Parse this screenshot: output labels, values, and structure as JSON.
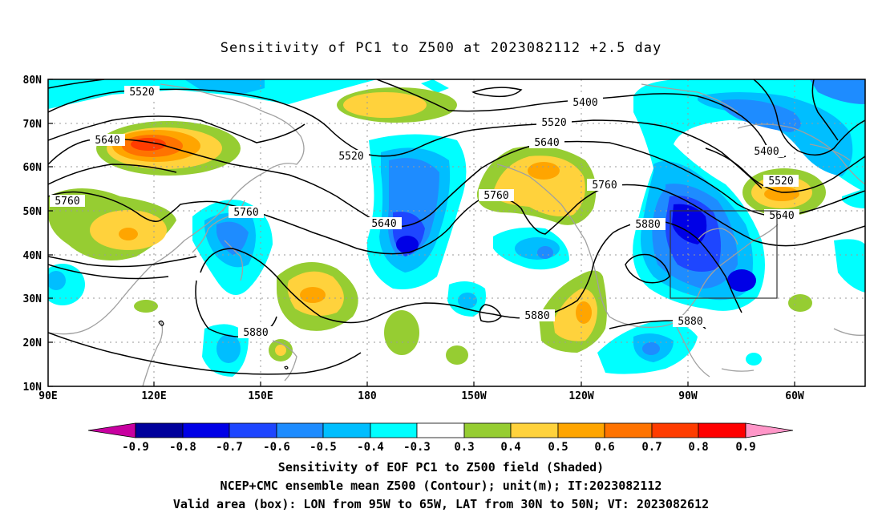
{
  "title": "Sensitivity of PC1 to Z500 at 2023082112 +2.5 day",
  "axes": {
    "y_ticks": [
      "80N",
      "70N",
      "60N",
      "50N",
      "40N",
      "30N",
      "20N",
      "10N"
    ],
    "x_ticks": [
      "90E",
      "120E",
      "150E",
      "180",
      "150W",
      "120W",
      "90W",
      "60W"
    ]
  },
  "contour_levels": [
    {
      "label": "5400",
      "value": 5400
    },
    {
      "label": "5520",
      "value": 5520
    },
    {
      "label": "5640",
      "value": 5640
    },
    {
      "label": "5760",
      "value": 5760
    },
    {
      "label": "5880",
      "value": 5880
    }
  ],
  "contour_labels": [
    {
      "text": "5520"
    },
    {
      "text": "5640"
    },
    {
      "text": "5760"
    },
    {
      "text": "5520"
    },
    {
      "text": "5760"
    },
    {
      "text": "5880"
    },
    {
      "text": "5640"
    },
    {
      "text": "5520"
    },
    {
      "text": "5640"
    },
    {
      "text": "5760"
    },
    {
      "text": "5400"
    },
    {
      "text": "5760"
    },
    {
      "text": "5880"
    },
    {
      "text": "5880"
    },
    {
      "text": "5880"
    },
    {
      "text": "5400"
    },
    {
      "text": "5520"
    },
    {
      "text": "5640"
    }
  ],
  "colorbar": {
    "labels": [
      "-0.9",
      "-0.8",
      "-0.7",
      "-0.6",
      "-0.5",
      "-0.4",
      "-0.3",
      "0.3",
      "0.4",
      "0.5",
      "0.6",
      "0.7",
      "0.8",
      "0.9"
    ],
    "colors": {
      "neg_tip": "#c800a0",
      "neg_0.9": "#00009b",
      "neg_0.8": "#0000e6",
      "neg_0.7": "#1e46ff",
      "neg_0.6": "#1e8cff",
      "neg_0.5": "#00beff",
      "neg_0.4": "#00ffff",
      "neutral": "#ffffff",
      "pos_0.3": "#96cd32",
      "pos_0.4": "#ffd23c",
      "pos_0.5": "#ffa500",
      "pos_0.6": "#ff7300",
      "pos_0.7": "#ff3c00",
      "pos_0.8": "#ff0000",
      "pos_tip": "#ff96c8"
    }
  },
  "valid_box": {
    "lon_w": "95W",
    "lon_e": "65W",
    "lat_s": "30N",
    "lat_n": "50N"
  },
  "captions": {
    "line1": "Sensitivity of EOF PC1 to Z500 field (Shaded)",
    "line2": "NCEP+CMC ensemble mean Z500 (Contour); unit(m); IT:2023082112",
    "line3": "Valid area (box): LON from 95W to 65W, LAT from 30N to 50N; VT: 2023082612"
  }
}
